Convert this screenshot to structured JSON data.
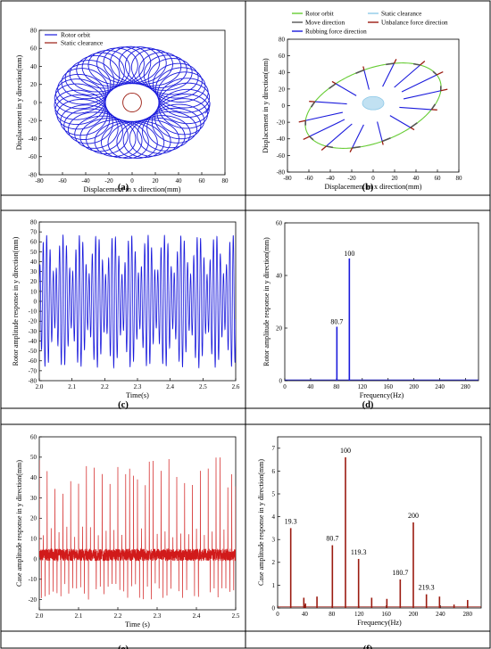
{
  "colors": {
    "blue": "#1a1adc",
    "brown": "#9b1b10",
    "red": "#d11a1a",
    "green": "#66cc33",
    "lightblue": "#8ec9e8",
    "darkgray": "#555555"
  },
  "chart_data": [
    {
      "id": "a",
      "type": "line",
      "panel_label": "(a)",
      "xlabel": "Displacement in x direction(mm)",
      "ylabel": "Displacement in y direction(mm)",
      "xlim": [
        -80,
        80
      ],
      "ylim": [
        -80,
        80
      ],
      "xticks": [
        -80,
        -60,
        -40,
        -20,
        0,
        20,
        40,
        60,
        80
      ],
      "yticks": [
        -80,
        -60,
        -40,
        -20,
        0,
        20,
        40,
        60,
        80
      ],
      "legend": [
        "Rotor orbit",
        "Static clearance"
      ],
      "legend_position": "top-left",
      "series": [
        {
          "name": "Rotor orbit",
          "kind": "precessing-ellipse-band",
          "outer_rx": 67,
          "outer_ry": 62,
          "inner_rx": 23,
          "inner_ry": 21
        },
        {
          "name": "Static clearance",
          "kind": "circle",
          "radius": 8
        }
      ]
    },
    {
      "id": "b",
      "type": "line",
      "panel_label": "(b)",
      "xlabel": "Displacement in x direction(mm)",
      "ylabel": "Displacement in y direction(mm)",
      "xlim": [
        -80,
        80
      ],
      "ylim": [
        -80,
        80
      ],
      "xticks": [
        -80,
        -60,
        -40,
        -20,
        0,
        20,
        40,
        60,
        80
      ],
      "yticks": [
        -80,
        -60,
        -40,
        -20,
        0,
        20,
        40,
        60,
        80
      ],
      "legend": [
        "Rotor orbit",
        "Static clearance",
        "Move direction",
        "Unbalance force direction",
        "Rubbing force direction"
      ],
      "legend_position": "top",
      "series": [
        {
          "name": "Rotor orbit",
          "kind": "tilted-ellipse",
          "cx": 0,
          "cy": 0,
          "rx": 70,
          "ry": 42,
          "angle_deg": 32
        },
        {
          "name": "Static clearance",
          "kind": "ellipse",
          "cx": 0,
          "cy": 3,
          "rx": 10,
          "ry": 8
        }
      ]
    },
    {
      "id": "c",
      "type": "line",
      "panel_label": "(c)",
      "xlabel": "Time(s)",
      "ylabel": "Rotor amplitude response in y direction(mm)",
      "xlim": [
        2.0,
        2.6
      ],
      "ylim": [
        -80,
        80
      ],
      "xticks": [
        2.0,
        2.1,
        2.2,
        2.3,
        2.4,
        2.5,
        2.6
      ],
      "ytick_labels": [
        "-80",
        "-70",
        "-60",
        "-50",
        "-40",
        "-30",
        "-20",
        "-10",
        "0",
        "10",
        "20",
        "30",
        "40",
        "50",
        "60",
        "70",
        "80"
      ],
      "signal": {
        "components": [
          {
            "amp": 47,
            "freq_hz": 100
          },
          {
            "amp": 20,
            "freq_hz": 80.7
          }
        ]
      }
    },
    {
      "id": "d",
      "type": "bar",
      "panel_label": "(d)",
      "xlabel": "Frequency(Hz)",
      "ylabel": "Rotor amplitude response in y direction(mm)",
      "xlim": [
        0,
        300
      ],
      "ylim": [
        0,
        60
      ],
      "xticks": [
        0,
        40,
        80,
        120,
        160,
        200,
        240,
        280
      ],
      "yticks": [
        0,
        20,
        40,
        60
      ],
      "x": [
        80.7,
        100
      ],
      "values": [
        20.5,
        46.5
      ],
      "annotations": [
        {
          "x": 80.7,
          "text": "80.7"
        },
        {
          "x": 100,
          "text": "100"
        }
      ]
    },
    {
      "id": "e",
      "type": "line",
      "panel_label": "(e)",
      "xlabel": "Time (s)",
      "ylabel": "Case amplitude response in y direction(mm)",
      "xlim": [
        2.0,
        2.5
      ],
      "ylim": [
        -25,
        60
      ],
      "xticks": [
        2.0,
        2.1,
        2.2,
        2.3,
        2.4,
        2.5
      ],
      "yticks": [
        -20,
        -10,
        0,
        10,
        20,
        30,
        40,
        50,
        60
      ],
      "signal": {
        "baseline": 2,
        "noise": 3,
        "impulse_hz": 100,
        "peak_range": [
          32,
          50
        ],
        "trough_range": [
          -12,
          -20
        ]
      }
    },
    {
      "id": "f",
      "type": "bar",
      "panel_label": "(f)",
      "xlabel": "Frequency(Hz)",
      "ylabel": "Case amplitude response in y direction(mm)",
      "xlim": [
        0,
        300
      ],
      "ylim": [
        0,
        7.5
      ],
      "xticks": [
        0,
        40,
        80,
        120,
        160,
        200,
        240,
        280
      ],
      "yticks": [
        0,
        1,
        2,
        3,
        4,
        5,
        6,
        7
      ],
      "x": [
        19.3,
        38.6,
        41,
        58,
        80.7,
        100,
        119.3,
        138.6,
        161,
        180.7,
        200,
        219.3,
        238.6,
        260,
        280
      ],
      "values": [
        3.5,
        0.45,
        0.2,
        0.5,
        2.75,
        6.6,
        2.15,
        0.45,
        0.4,
        1.25,
        3.75,
        0.6,
        0.5,
        0.15,
        0.35
      ],
      "annotations": [
        {
          "x": 19.3,
          "text": "19.3"
        },
        {
          "x": 80.7,
          "text": "80.7"
        },
        {
          "x": 100,
          "text": "100"
        },
        {
          "x": 119.3,
          "text": "119.3"
        },
        {
          "x": 180.7,
          "text": "180.7"
        },
        {
          "x": 200,
          "text": "200"
        },
        {
          "x": 219.3,
          "text": "219.3"
        }
      ]
    }
  ]
}
